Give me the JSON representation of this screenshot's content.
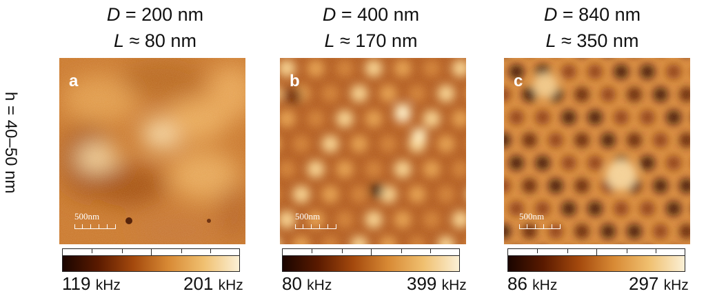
{
  "row_label": "h = 40–50 nm",
  "panels": [
    {
      "id": "a",
      "label": "a",
      "D": "D = 200 nm",
      "L": "L ≈ 80 nm",
      "scale_label": "500nm",
      "cmin": "119",
      "cmax": "201",
      "unit": "kHz"
    },
    {
      "id": "b",
      "label": "b",
      "D": "D = 400 nm",
      "L": "L ≈ 170 nm",
      "scale_label": "500nm",
      "cmin": "80",
      "cmax": "399",
      "unit": "kHz"
    },
    {
      "id": "c",
      "label": "c",
      "D": "D = 840 nm",
      "L": "L ≈ 350 nm",
      "scale_label": "500nm",
      "cmin": "86",
      "cmax": "297",
      "unit": "kHz"
    }
  ],
  "colormap": [
    "#1a0500",
    "#5a1a00",
    "#a4490d",
    "#d88a35",
    "#f0c070",
    "#fbf0d6"
  ]
}
